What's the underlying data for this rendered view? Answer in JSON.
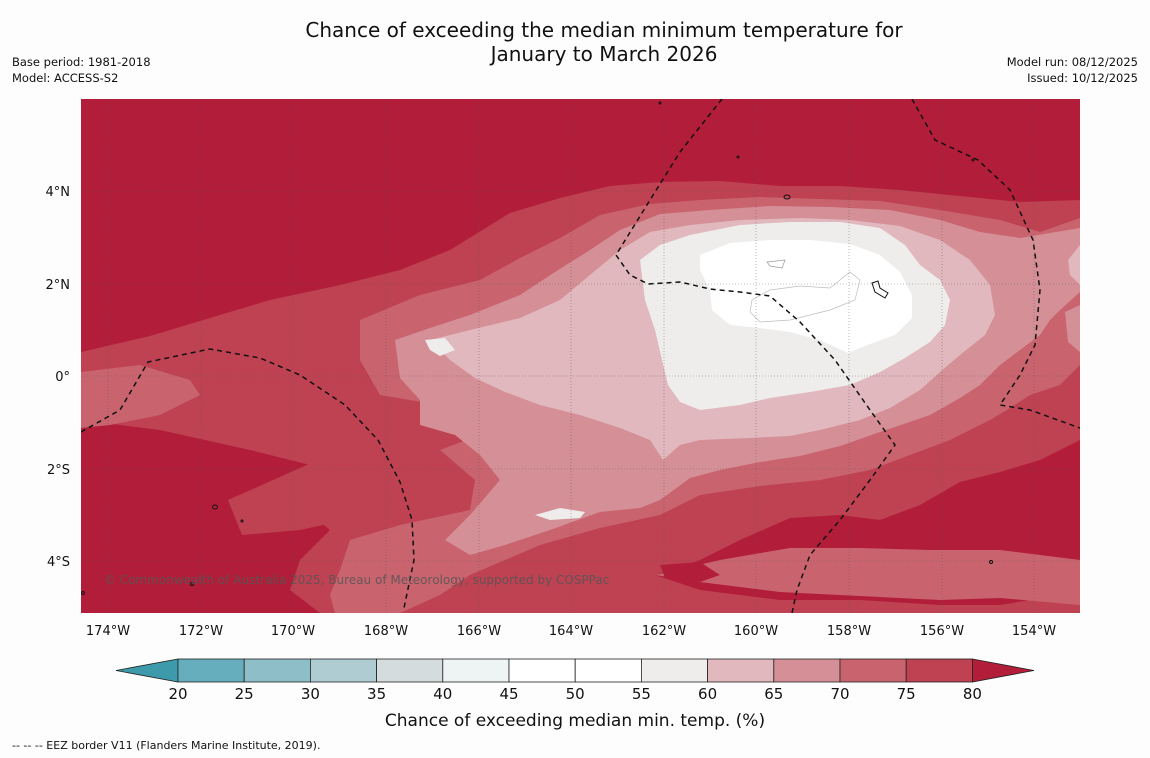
{
  "title_line1": "Chance of exceeding the median minimum temperature for",
  "title_line2": "January to March 2026",
  "meta_left": {
    "base_period": "Base period: 1981-2018",
    "model": "Model: ACCESS-S2"
  },
  "meta_right": {
    "model_run": "Model run: 08/12/2025",
    "issued": "Issued: 10/12/2025"
  },
  "map": {
    "copyright": "© Commonwealth of Australia 2025, Bureau of Meteorology, supported by COSPPac",
    "lat_labels": [
      "4°N",
      "2°N",
      "0°",
      "2°S",
      "4°S"
    ],
    "lon_labels": [
      "174°W",
      "172°W",
      "170°W",
      "168°W",
      "166°W",
      "164°W",
      "162°W",
      "160°W",
      "158°W",
      "156°W",
      "154°W"
    ]
  },
  "colorbar": {
    "title": "Chance of exceeding median min. temp. (%)",
    "ticks": [
      "20",
      "25",
      "30",
      "35",
      "40",
      "45",
      "50",
      "55",
      "60",
      "65",
      "70",
      "75",
      "80"
    ],
    "colors": [
      "#3d9aaa",
      "#66aebd",
      "#8ebfc9",
      "#aeccd1",
      "#d4dcdd",
      "#eef3f3",
      "#ffffff",
      "#ffffff",
      "#eeedec",
      "#e0b8bd",
      "#d58f97",
      "#c9646f",
      "#be4252",
      "#b21e3a"
    ]
  },
  "footnote": "--  --  -- EEZ border V11 (Flanders Marine Institute, 2019)."
}
